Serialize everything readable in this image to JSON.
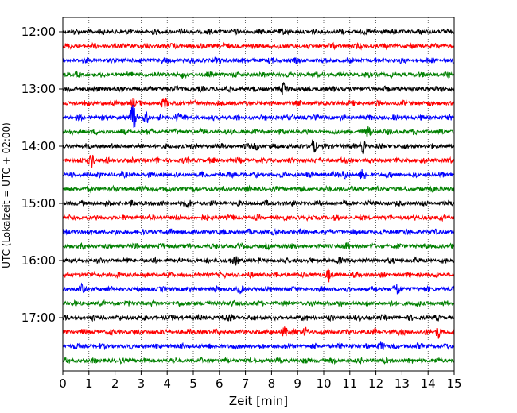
{
  "chart_data": {
    "type": "line",
    "title": "",
    "xlabel": "Zeit  [min]",
    "ylabel": "UTC (Lokalzeit = UTC + 02:00)",
    "xlim": [
      0,
      15
    ],
    "x_ticks": [
      "0",
      "1",
      "2",
      "3",
      "4",
      "5",
      "6",
      "7",
      "8",
      "9",
      "10",
      "11",
      "12",
      "13",
      "14",
      "15"
    ],
    "y_ticks": [
      "12:00",
      "13:00",
      "14:00",
      "15:00",
      "16:00",
      "17:00"
    ],
    "grid": "vertical dotted lines at every minute",
    "trace_interval_min": 15,
    "traces": [
      {
        "start": "12:00",
        "color": "#000000",
        "events": [
          [
            8.4,
            3
          ]
        ]
      },
      {
        "start": "12:15",
        "color": "#ff0000",
        "events": []
      },
      {
        "start": "12:30",
        "color": "#0000ff",
        "events": []
      },
      {
        "start": "12:45",
        "color": "#008000",
        "events": [
          [
            4.6,
            4
          ]
        ]
      },
      {
        "start": "13:00",
        "color": "#000000",
        "events": [
          [
            8.5,
            10
          ]
        ]
      },
      {
        "start": "13:15",
        "color": "#ff0000",
        "events": [
          [
            2.7,
            5
          ],
          [
            3.9,
            7
          ]
        ]
      },
      {
        "start": "13:30",
        "color": "#0000ff",
        "events": [
          [
            2.7,
            18
          ],
          [
            3.2,
            7
          ],
          [
            4.4,
            5
          ]
        ]
      },
      {
        "start": "13:45",
        "color": "#008000",
        "events": [
          [
            11.7,
            6
          ]
        ]
      },
      {
        "start": "14:00",
        "color": "#000000",
        "events": [
          [
            7.4,
            4
          ],
          [
            9.6,
            9
          ],
          [
            11.5,
            8
          ]
        ]
      },
      {
        "start": "14:15",
        "color": "#ff0000",
        "events": [
          [
            1.1,
            8
          ]
        ]
      },
      {
        "start": "14:30",
        "color": "#0000ff",
        "events": [
          [
            10.8,
            6
          ],
          [
            11.5,
            9
          ]
        ]
      },
      {
        "start": "14:45",
        "color": "#008000",
        "events": []
      },
      {
        "start": "15:00",
        "color": "#000000",
        "events": [
          [
            4.8,
            5
          ]
        ]
      },
      {
        "start": "15:15",
        "color": "#ff0000",
        "events": []
      },
      {
        "start": "15:30",
        "color": "#0000ff",
        "events": []
      },
      {
        "start": "15:45",
        "color": "#008000",
        "events": [
          [
            10.9,
            4
          ]
        ]
      },
      {
        "start": "16:00",
        "color": "#000000",
        "events": [
          [
            6.6,
            6
          ],
          [
            10.6,
            4
          ]
        ]
      },
      {
        "start": "16:15",
        "color": "#ff0000",
        "events": [
          [
            10.2,
            8
          ]
        ]
      },
      {
        "start": "16:30",
        "color": "#0000ff",
        "events": [
          [
            0.7,
            7
          ],
          [
            6.8,
            5
          ],
          [
            12.8,
            8
          ]
        ]
      },
      {
        "start": "16:45",
        "color": "#008000",
        "events": []
      },
      {
        "start": "17:00",
        "color": "#000000",
        "events": [
          [
            6.4,
            5
          ]
        ]
      },
      {
        "start": "17:15",
        "color": "#ff0000",
        "events": [
          [
            8.5,
            6
          ],
          [
            9.3,
            5
          ],
          [
            14.4,
            7
          ]
        ]
      },
      {
        "start": "17:30",
        "color": "#0000ff",
        "events": [
          [
            12.2,
            6
          ]
        ]
      },
      {
        "start": "17:45",
        "color": "#008000",
        "events": []
      }
    ]
  }
}
